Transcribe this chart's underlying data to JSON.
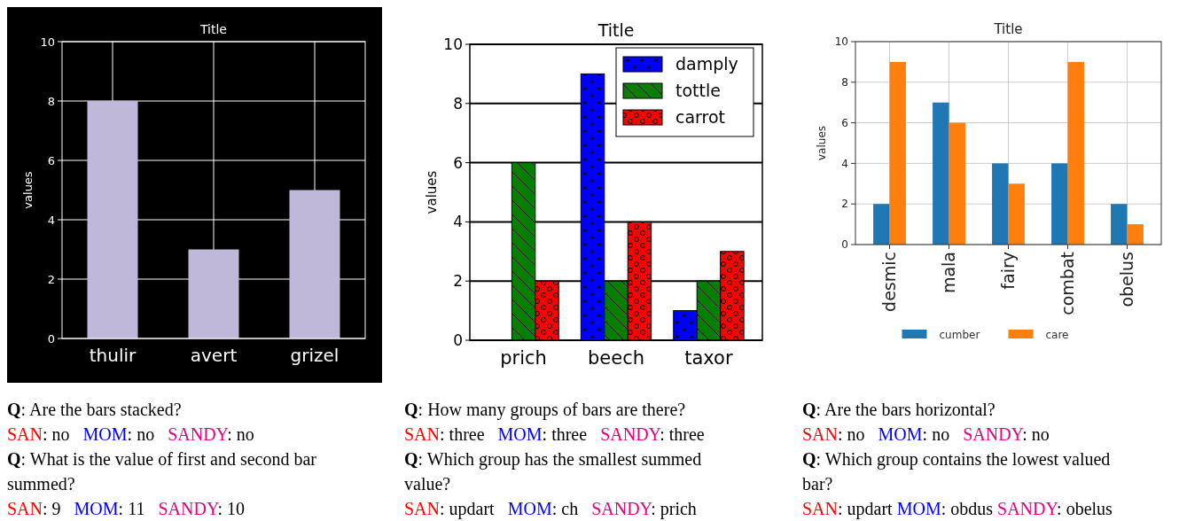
{
  "chart_data": [
    {
      "type": "bar",
      "title": "Title",
      "ylabel": "values",
      "categories": [
        "thulir",
        "avert",
        "grizel"
      ],
      "values": [
        8,
        3,
        5
      ],
      "color": "#bfb8d9",
      "ylim": [
        0,
        10
      ],
      "yticks": [
        0,
        2,
        4,
        6,
        8,
        10
      ],
      "grid": true,
      "legend": false,
      "annotations": [
        "Q: Are the bars stacked?",
        "SAN: no   MOM: no   SANDY: no",
        "Q: What is the value of first and second bar summed?",
        "SAN: 9   MOM: 11   SANDY: 10"
      ]
    },
    {
      "type": "bar",
      "title": "Title",
      "ylabel": "values",
      "categories": [
        "prich",
        "beech",
        "taxor"
      ],
      "series": [
        {
          "name": "damply",
          "color": "#0000ff",
          "values": [
            0,
            9,
            1
          ]
        },
        {
          "name": "tottle",
          "color": "#008000",
          "values": [
            6,
            2,
            2
          ]
        },
        {
          "name": "carrot",
          "color": "#ff0000",
          "values": [
            2,
            4,
            3
          ]
        }
      ],
      "ylim": [
        0,
        10
      ],
      "yticks": [
        0,
        2,
        4,
        6,
        8,
        10
      ],
      "grid": "y",
      "legend": "top right",
      "annotations": [
        "Q: How many groups of bars are there?",
        "SAN: three   MOM: three   SANDY: three",
        "Q: Which group has the smallest summed value?",
        "SAN: updart   MOM: ch   SANDY: prich"
      ]
    },
    {
      "type": "bar",
      "title": "Title",
      "ylabel": "values",
      "categories": [
        "desmic",
        "mala",
        "fairy",
        "combat",
        "obelus"
      ],
      "series": [
        {
          "name": "cumber",
          "color": "#1f77b4",
          "values": [
            2,
            7,
            4,
            4,
            2
          ]
        },
        {
          "name": "care",
          "color": "#ff7f0e",
          "values": [
            9,
            6,
            3,
            9,
            1
          ]
        }
      ],
      "ylim": [
        0,
        10
      ],
      "yticks": [
        0,
        2,
        4,
        6,
        8,
        10
      ],
      "grid": true,
      "legend": "bottom",
      "annotations": [
        "Q: Are the bars horizontal?",
        "SAN: no   MOM: no   SANDY: no",
        "Q: Which group contains the lowest valued bar?",
        "SAN: updart MOM: obdus SANDY: obelus"
      ]
    }
  ]
}
